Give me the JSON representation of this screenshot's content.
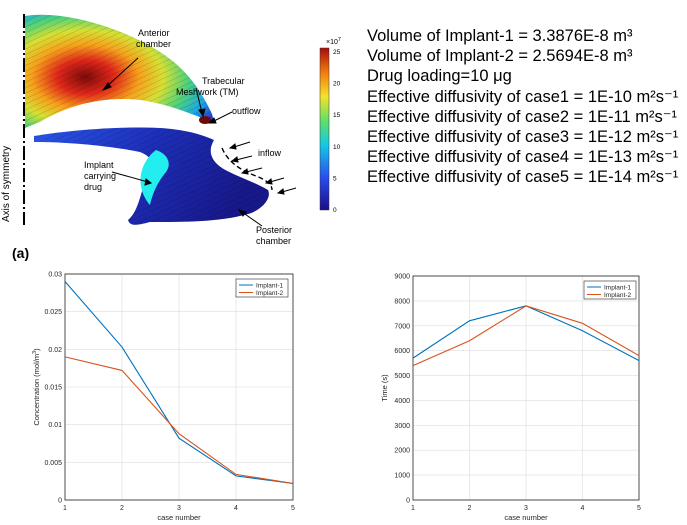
{
  "figure_a": {
    "panel_label": "(a)",
    "axis_label": "Axis of symmetry",
    "labels": {
      "anterior": "Anterior\nchamber",
      "tm": "Trabecular\nMeshwork (TM)",
      "outflow": "outflow",
      "inflow": "inflow",
      "implant": "Implant\ncarrying\ndrug",
      "posterior": "Posterior\nchamber"
    },
    "colorbar": {
      "exponent": "×10",
      "exponent_power": "7",
      "ticks": [
        "25",
        "20",
        "15",
        "10",
        "5",
        "0"
      ]
    }
  },
  "info_lines": [
    "Volume of Implant-1 = 3.3876E-8 m³",
    "Volume of Implant-2 = 2.5694E-8 m³",
    "Drug loading=10 μg",
    "Effective diffusivity of case1 = 1E-10 m²s⁻¹",
    "Effective diffusivity of case2 = 1E-11 m²s⁻¹",
    "Effective diffusivity of case3 = 1E-12 m²s⁻¹",
    "Effective diffusivity of case4 = 1E-13 m²s⁻¹",
    "Effective diffusivity of case5 = 1E-14 m²s⁻¹"
  ],
  "colors": {
    "implant1": "#0072bd",
    "implant2": "#d95319"
  },
  "chart_data": [
    {
      "type": "line",
      "x": [
        1,
        2,
        3,
        4,
        5
      ],
      "series": [
        {
          "name": "Implant-1",
          "values": [
            0.029,
            0.0203,
            0.0082,
            0.0032,
            0.0022
          ]
        },
        {
          "name": "Implant-2",
          "values": [
            0.019,
            0.0172,
            0.0088,
            0.0034,
            0.0022
          ]
        }
      ],
      "xlabel": "case number",
      "ylabel": "Concentration (mol/m",
      "ylabel_sup": "3",
      "ylabel_end": ")",
      "xlim": [
        1,
        5
      ],
      "ylim": [
        0,
        0.03
      ],
      "xticks": [
        "1",
        "2",
        "3",
        "4",
        "5"
      ],
      "yticks": [
        "0",
        "0.005",
        "0.01",
        "0.015",
        "0.02",
        "0.025",
        "0.03"
      ],
      "grid": true,
      "legend": "top-right"
    },
    {
      "type": "line",
      "x": [
        1,
        2,
        3,
        4,
        5
      ],
      "series": [
        {
          "name": "Implant-1",
          "values": [
            5700,
            7200,
            7800,
            6800,
            5600
          ]
        },
        {
          "name": "Implant-2",
          "values": [
            5400,
            6400,
            7800,
            7100,
            5800
          ]
        }
      ],
      "xlabel": "case number",
      "ylabel": "Time (s)",
      "xlim": [
        1,
        5
      ],
      "ylim": [
        0,
        9000
      ],
      "xticks": [
        "1",
        "2",
        "3",
        "4",
        "5"
      ],
      "yticks": [
        "0",
        "1000",
        "2000",
        "3000",
        "4000",
        "5000",
        "6000",
        "7000",
        "8000",
        "9000"
      ],
      "grid": true,
      "legend": "top-right"
    }
  ]
}
